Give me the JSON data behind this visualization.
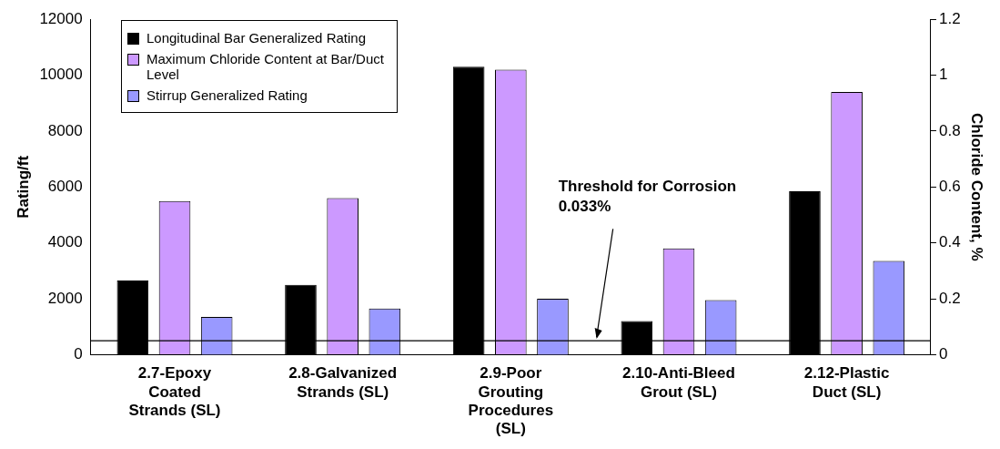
{
  "chart_data": {
    "type": "bar",
    "categories": [
      "2.7-Epoxy Coated Strands (SL)",
      "2.8-Galvanized Strands (SL)",
      "2.9-Poor Grouting Procedures (SL)",
      "2.10-Anti-Bleed Grout (SL)",
      "2.12-Plastic Duct (SL)"
    ],
    "series": [
      {
        "name": "Longitudinal Bar Generalized Rating",
        "color": "#000000",
        "values": [
          2650,
          2500,
          10300,
          1200,
          5850
        ]
      },
      {
        "name": "Maximum Chloride Content at Bar/Duct Level",
        "color": "#cc99ff",
        "axis": "y2",
        "values": [
          0.55,
          0.56,
          1.02,
          0.38,
          0.94
        ]
      },
      {
        "name": "Stirrup Generalized Rating",
        "color": "#9999ff",
        "values": [
          1350,
          1650,
          2000,
          1950,
          3350
        ]
      }
    ],
    "ylabel": "Rating/ft",
    "y2label": "Chloride Content, %",
    "ylim": [
      0,
      12000
    ],
    "yticks": [
      0,
      2000,
      4000,
      6000,
      8000,
      10000,
      12000
    ],
    "y2lim": [
      0,
      1.2
    ],
    "y2ticks": [
      0,
      0.2,
      0.4,
      0.6,
      0.8,
      1,
      1.2
    ],
    "ref_lines": [
      {
        "axis": "y2",
        "value": 0.05,
        "label": "Threshold for Corrosion 0.033%",
        "color": "#000000"
      }
    ],
    "legend": "top left",
    "grid": false
  }
}
